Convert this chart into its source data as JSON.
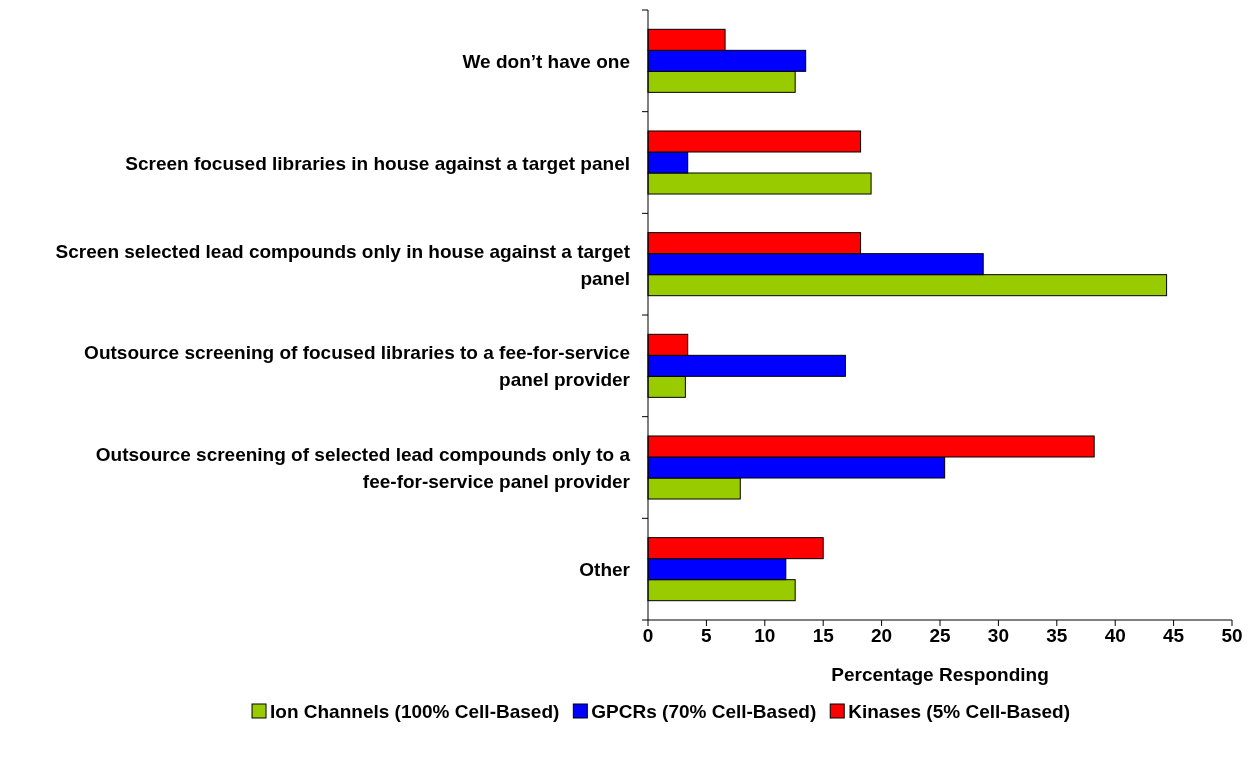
{
  "chart_data": {
    "type": "bar",
    "orientation": "horizontal",
    "xlabel": "Percentage Responding",
    "categories": [
      "We don’t have one",
      "Screen focused libraries in house against a target panel",
      "Screen selected lead compounds only in house against a target panel",
      "Outsource screening of focused libraries to a fee-for-service panel provider",
      "Outsource screening of selected lead compounds only to a fee-for-service panel provider",
      "Other"
    ],
    "series": [
      {
        "name": "Ion Channels (100% Cell-Based)",
        "color": "#99cc00",
        "values": [
          12.6,
          19.1,
          44.4,
          3.2,
          7.9,
          12.6
        ]
      },
      {
        "name": "GPCRs (70% Cell-Based)",
        "color": "#0000ff",
        "values": [
          13.5,
          3.4,
          28.7,
          16.9,
          25.4,
          11.8
        ]
      },
      {
        "name": "Kinases (5% Cell-Based)",
        "color": "#ff0000",
        "values": [
          6.6,
          18.2,
          18.2,
          3.4,
          38.2,
          15.0
        ]
      }
    ],
    "xlim": [
      0,
      50
    ],
    "xticks": [
      0,
      5,
      10,
      15,
      20,
      25,
      30,
      35,
      40,
      45,
      50
    ],
    "grid": false,
    "legend": "bottom"
  }
}
